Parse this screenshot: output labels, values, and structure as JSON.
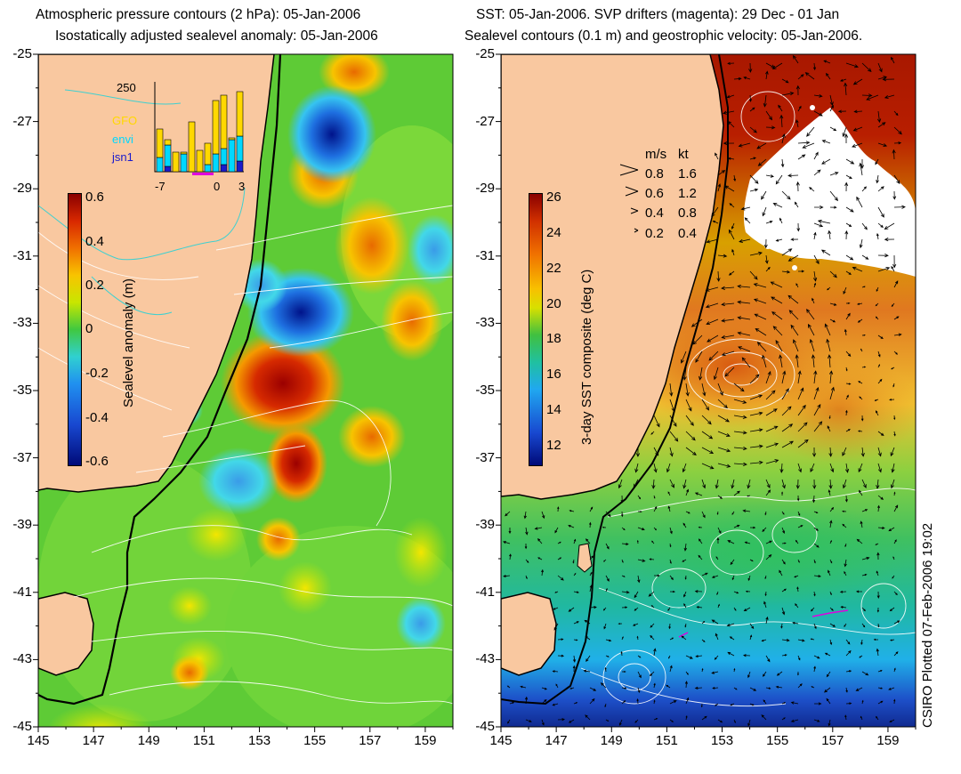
{
  "left_panel": {
    "title_line1": "Atmospheric pressure contours (2 hPa): 05-Jan-2006",
    "title_line2": "Isostatically adjusted sealevel anomaly: 05-Jan-2006",
    "colorbar": {
      "label": "Sealevel anomaly (m)",
      "ticks": [
        "0.6",
        "0.4",
        "0.2",
        "0",
        "-0.2",
        "-0.4",
        "-0.6"
      ],
      "range": [
        -0.6,
        0.6
      ]
    },
    "inset": {
      "ymax_label": "250",
      "series": [
        {
          "name": "GFO",
          "color": "#ffd800"
        },
        {
          "name": "envi",
          "color": "#00d8ff"
        },
        {
          "name": "jsn1",
          "color": "#1a1acc"
        }
      ],
      "x_labels": [
        "-7",
        "0",
        "3"
      ],
      "bars": [
        {
          "day": -7,
          "total": 120,
          "envi": 40,
          "jsn1": 0
        },
        {
          "day": -6,
          "total": 90,
          "envi": 60,
          "jsn1": 15
        },
        {
          "day": -5,
          "total": 55,
          "envi": 0,
          "jsn1": 0
        },
        {
          "day": -4,
          "total": 55,
          "envi": 50,
          "jsn1": 0
        },
        {
          "day": -3,
          "total": 140,
          "envi": 0,
          "jsn1": 0
        },
        {
          "day": -2,
          "total": 60,
          "envi": 0,
          "jsn1": 0
        },
        {
          "day": -1,
          "total": 80,
          "envi": 20,
          "jsn1": 0
        },
        {
          "day": 0,
          "total": 200,
          "envi": 50,
          "jsn1": 0
        },
        {
          "day": 1,
          "total": 215,
          "envi": 45,
          "jsn1": 20
        },
        {
          "day": 2,
          "total": 95,
          "envi": 90,
          "jsn1": 0
        },
        {
          "day": 3,
          "total": 225,
          "envi": 70,
          "jsn1": 30
        }
      ]
    }
  },
  "right_panel": {
    "title_line1": "SST: 05-Jan-2006. SVP drifters (magenta): 29 Dec - 01 Jan",
    "title_line2": "Sealevel contours (0.1 m) and geostrophic velocity: 05-Jan-2006.",
    "colorbar": {
      "label": "3-day SST composite (deg C)",
      "ticks": [
        "26",
        "24",
        "22",
        "20",
        "18",
        "16",
        "14",
        "12"
      ],
      "range": [
        11,
        26
      ]
    },
    "velocity_legend": {
      "header_ms": "m/s",
      "header_kt": "kt",
      "rows": [
        {
          "ms": "0.8",
          "kt": "1.6"
        },
        {
          "ms": "0.6",
          "kt": "1.2"
        },
        {
          "ms": "0.4",
          "kt": "0.8"
        },
        {
          "ms": "0.2",
          "kt": "0.4"
        }
      ]
    }
  },
  "axes": {
    "y_labels": [
      "-25",
      "-27",
      "-29",
      "-31",
      "-33",
      "-35",
      "-37",
      "-39",
      "-41",
      "-43",
      "-45"
    ],
    "x_labels": [
      "145",
      "147",
      "149",
      "151",
      "153",
      "155",
      "157",
      "159"
    ]
  },
  "stamp": "CSIRO Plotted 07-Feb-2006 19:02",
  "colors": {
    "land": "#f9c8a0",
    "contour": "#ffffff",
    "coast": "#000000"
  }
}
